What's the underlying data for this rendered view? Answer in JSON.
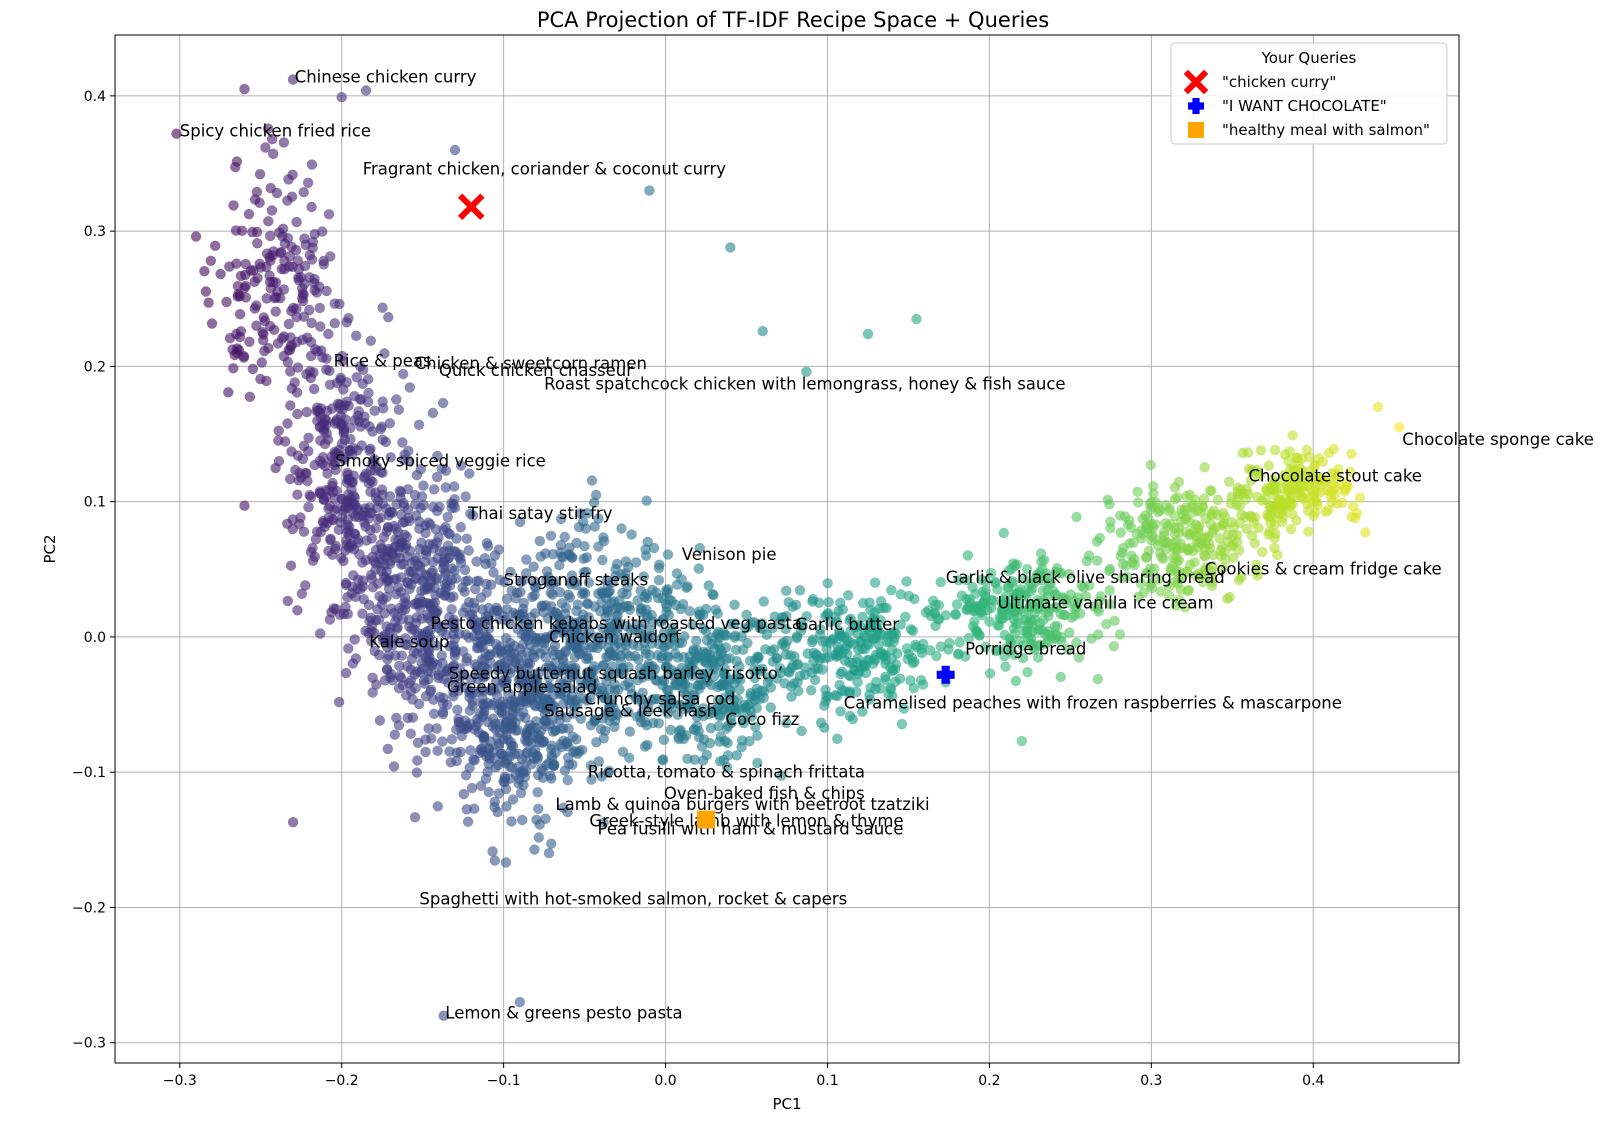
{
  "chart_data": {
    "type": "scatter",
    "title": "PCA Projection of TF-IDF Recipe Space + Queries",
    "xlabel": "PC1",
    "ylabel": "PC2",
    "xlim": [
      -0.34,
      0.49
    ],
    "ylim": [
      -0.315,
      0.445
    ],
    "x_ticks": [
      -0.3,
      -0.2,
      -0.1,
      0.0,
      0.1,
      0.2,
      0.3,
      0.4
    ],
    "x_tick_labels": [
      "−0.3",
      "−0.2",
      "−0.1",
      "0.0",
      "0.1",
      "0.2",
      "0.3",
      "0.4"
    ],
    "y_ticks": [
      -0.3,
      -0.2,
      -0.1,
      0.0,
      0.1,
      0.2,
      0.3,
      0.4
    ],
    "y_tick_labels": [
      "−0.3",
      "−0.2",
      "−0.1",
      "0.0",
      "0.1",
      "0.2",
      "0.3",
      "0.4"
    ],
    "grid": true,
    "colormap": "viridis",
    "point_count_rendered": 3200,
    "point_opacity": 0.6,
    "point_clouds": [
      {
        "center": [
          -0.24,
          0.26
        ],
        "spread": [
          0.035,
          0.07
        ],
        "share": 0.06
      },
      {
        "center": [
          -0.2,
          0.12
        ],
        "spread": [
          0.03,
          0.08
        ],
        "share": 0.1
      },
      {
        "center": [
          -0.15,
          0.03
        ],
        "spread": [
          0.035,
          0.09
        ],
        "share": 0.14
      },
      {
        "center": [
          -0.09,
          -0.05
        ],
        "spread": [
          0.04,
          0.07
        ],
        "share": 0.16
      },
      {
        "center": [
          -0.04,
          0.0
        ],
        "spread": [
          0.045,
          0.07
        ],
        "share": 0.14
      },
      {
        "center": [
          0.03,
          -0.03
        ],
        "spread": [
          0.04,
          0.05
        ],
        "share": 0.1
      },
      {
        "center": [
          0.12,
          -0.01
        ],
        "spread": [
          0.04,
          0.04
        ],
        "share": 0.08
      },
      {
        "center": [
          0.22,
          0.02
        ],
        "spread": [
          0.04,
          0.035
        ],
        "share": 0.08
      },
      {
        "center": [
          0.32,
          0.07
        ],
        "spread": [
          0.04,
          0.035
        ],
        "share": 0.08
      },
      {
        "center": [
          0.39,
          0.11
        ],
        "spread": [
          0.03,
          0.025
        ],
        "share": 0.06
      }
    ],
    "outlier_points": [
      [
        -0.302,
        0.372
      ],
      [
        -0.26,
        0.405
      ],
      [
        -0.23,
        0.412
      ],
      [
        -0.2,
        0.399
      ],
      [
        -0.185,
        0.404
      ],
      [
        -0.29,
        0.296
      ],
      [
        -0.26,
        0.097
      ],
      [
        -0.23,
        -0.137
      ],
      [
        -0.137,
        -0.28
      ],
      [
        -0.09,
        -0.27
      ],
      [
        0.04,
        0.288
      ],
      [
        0.125,
        0.224
      ],
      [
        0.155,
        0.235
      ],
      [
        0.22,
        -0.077
      ],
      [
        0.453,
        0.155
      ],
      [
        0.44,
        0.17
      ],
      [
        -0.13,
        0.36
      ],
      [
        0.06,
        0.226
      ],
      [
        -0.01,
        0.33
      ],
      [
        0.087,
        0.196
      ]
    ],
    "annotations": [
      {
        "text": "Chinese chicken curry",
        "x": -0.229,
        "y": 0.41
      },
      {
        "text": "Spicy chicken fried rice",
        "x": -0.3,
        "y": 0.37
      },
      {
        "text": "Fragrant chicken, coriander & coconut curry",
        "x": -0.187,
        "y": 0.342
      },
      {
        "text": "Rice & peas",
        "x": -0.205,
        "y": 0.2
      },
      {
        "text": "Chicken & sweetcorn ramen",
        "x": -0.155,
        "y": 0.198
      },
      {
        "text": "Quick chicken chasseur",
        "x": -0.14,
        "y": 0.193
      },
      {
        "text": "Roast spatchcock chicken with lemongrass, honey & fish sauce",
        "x": -0.075,
        "y": 0.183
      },
      {
        "text": "Smoky spiced veggie rice",
        "x": -0.204,
        "y": 0.126
      },
      {
        "text": "Thai satay stir-fry",
        "x": -0.122,
        "y": 0.087
      },
      {
        "text": "Venison pie",
        "x": 0.01,
        "y": 0.057
      },
      {
        "text": "Stroganoff steaks",
        "x": -0.1,
        "y": 0.038
      },
      {
        "text": "Garlic & black olive sharing bread",
        "x": 0.173,
        "y": 0.04
      },
      {
        "text": "Cookies & cream fridge cake",
        "x": 0.333,
        "y": 0.046
      },
      {
        "text": "Ultimate vanilla ice cream",
        "x": 0.205,
        "y": 0.021
      },
      {
        "text": "Pesto chicken kebabs with roasted veg pasta",
        "x": -0.145,
        "y": 0.006
      },
      {
        "text": "Garlic butter",
        "x": 0.08,
        "y": 0.005
      },
      {
        "text": "Chicken waldorf",
        "x": -0.072,
        "y": -0.004
      },
      {
        "text": "Kale soup",
        "x": -0.183,
        "y": -0.008
      },
      {
        "text": "Porridge bread",
        "x": 0.185,
        "y": -0.013
      },
      {
        "text": "Speedy butternut squash barley ‘risotto’",
        "x": -0.134,
        "y": -0.031
      },
      {
        "text": "Green apple salad",
        "x": -0.135,
        "y": -0.041
      },
      {
        "text": "Crunchy salsa cod",
        "x": -0.05,
        "y": -0.05
      },
      {
        "text": "Caramelised peaches with frozen raspberries & mascarpone",
        "x": 0.11,
        "y": -0.053
      },
      {
        "text": "Sausage & leek hash",
        "x": -0.075,
        "y": -0.059
      },
      {
        "text": "Coco fizz",
        "x": 0.037,
        "y": -0.065
      },
      {
        "text": "Ricotta, tomato & spinach frittata",
        "x": -0.048,
        "y": -0.104
      },
      {
        "text": "Oven-baked fish & chips",
        "x": -0.001,
        "y": -0.12
      },
      {
        "text": "Lamb & quinoa burgers with beetroot tzatziki",
        "x": -0.068,
        "y": -0.128
      },
      {
        "text": "Greek-style lamb with lemon & thyme",
        "x": -0.047,
        "y": -0.14
      },
      {
        "text": "Pea fusilli with ham & mustard sauce",
        "x": -0.042,
        "y": -0.146
      },
      {
        "text": "Spaghetti with hot-smoked salmon, rocket & capers",
        "x": -0.152,
        "y": -0.198
      },
      {
        "text": "Lemon & greens pesto pasta",
        "x": -0.136,
        "y": -0.282
      },
      {
        "text": "Chocolate sponge cake",
        "x": 0.455,
        "y": 0.142
      },
      {
        "text": "Chocolate stout cake",
        "x": 0.36,
        "y": 0.115
      }
    ],
    "queries": [
      {
        "label": "\"chicken curry\"",
        "x": -0.12,
        "y": 0.318,
        "marker": "X",
        "color": "#ff0000"
      },
      {
        "label": "\"I WANT CHOCOLATE\"",
        "x": 0.173,
        "y": -0.028,
        "marker": "P",
        "color": "#0000ff"
      },
      {
        "label": "\"healthy meal with salmon\"",
        "x": 0.025,
        "y": -0.135,
        "marker": "s",
        "color": "#ffa500"
      }
    ],
    "legend": {
      "title": "Your Queries",
      "placement": "top-right"
    }
  }
}
